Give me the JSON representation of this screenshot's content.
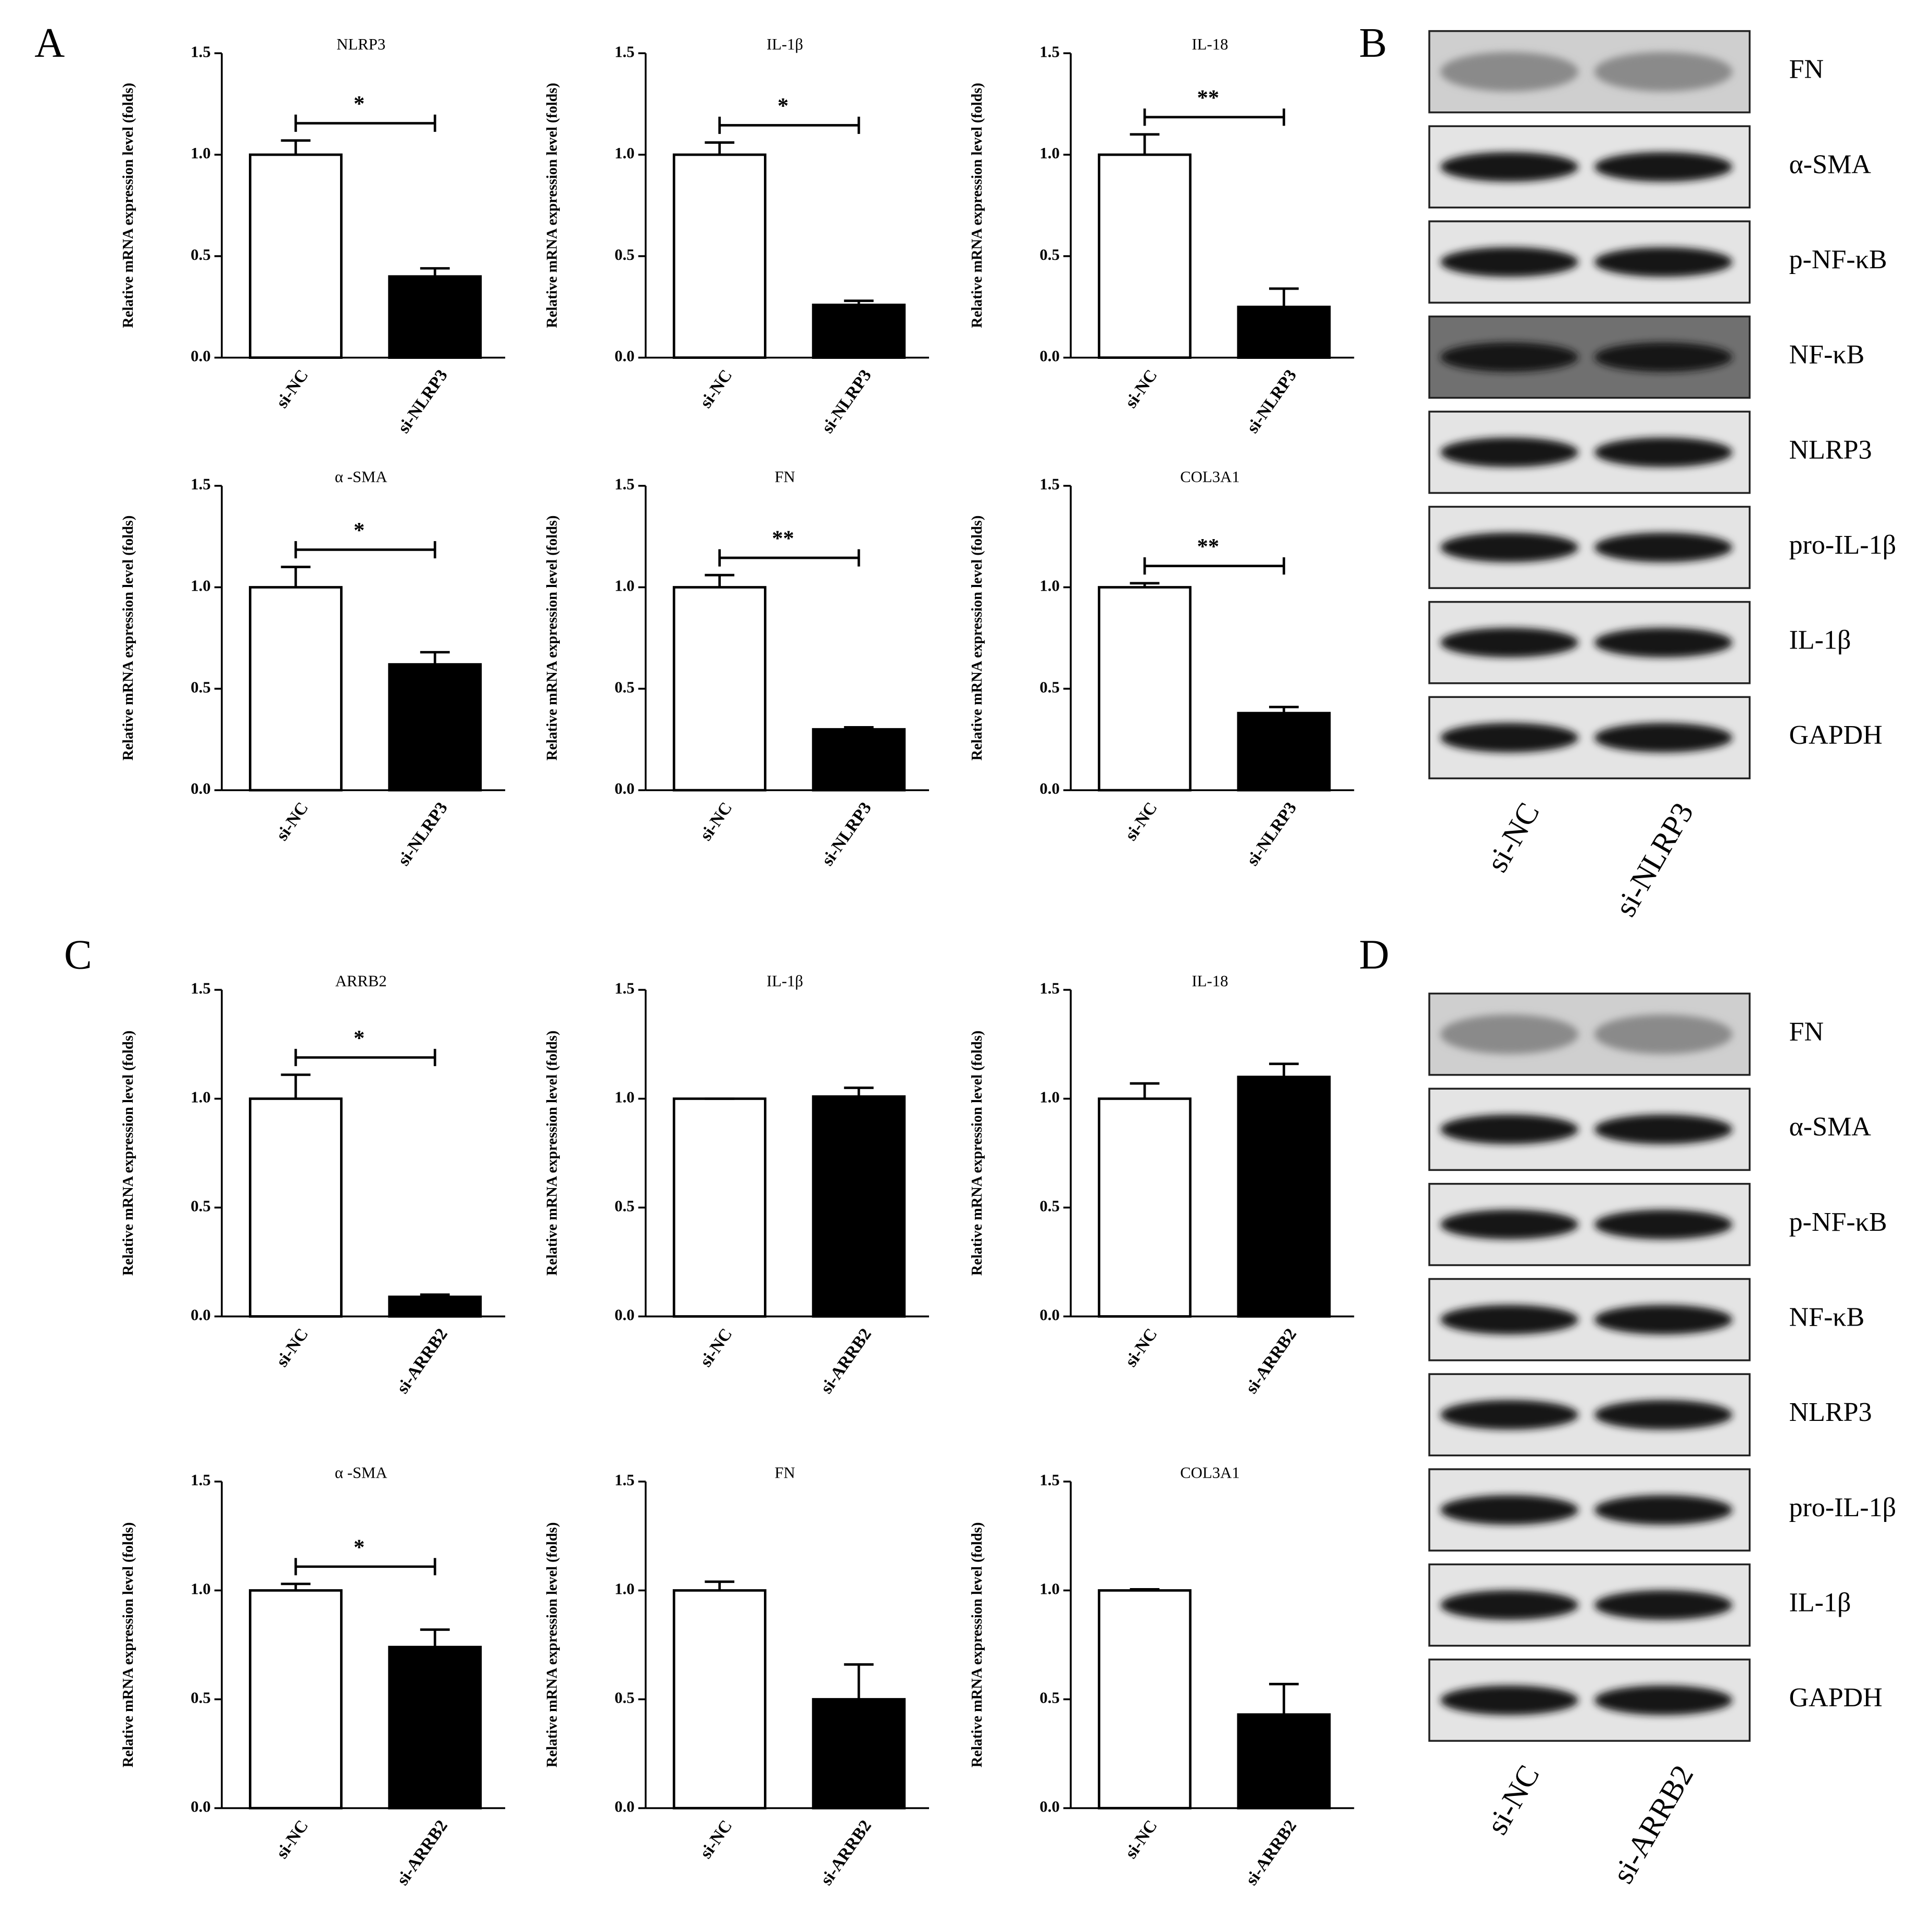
{
  "panel_labels": [
    "A",
    "B",
    "C",
    "D"
  ],
  "chart_data": [
    {
      "type": "bar",
      "title": "NLRP3",
      "ylabel": "Relative mRNA expression level (folds)",
      "categories": [
        "si-NC",
        "si-NLRP3"
      ],
      "values": [
        1.0,
        0.4
      ],
      "errors": [
        0.07,
        0.04
      ],
      "colors": [
        "#ffffff",
        "#000000"
      ],
      "significance": "*",
      "ylim": [
        0,
        1.5
      ],
      "yticks": [
        {
          "value": 0,
          "label": "0.0"
        },
        {
          "value": 0.5,
          "label": "0.5"
        },
        {
          "value": 1,
          "label": "1.0"
        },
        {
          "value": 1.5,
          "label": "1.5"
        }
      ]
    },
    {
      "type": "bar",
      "title": "IL-1β",
      "ylabel": "Relative mRNA expression level (folds)",
      "categories": [
        "si-NC",
        "si-NLRP3"
      ],
      "values": [
        1.0,
        0.26
      ],
      "errors": [
        0.06,
        0.02
      ],
      "colors": [
        "#ffffff",
        "#000000"
      ],
      "significance": "*",
      "ylim": [
        0,
        1.5
      ],
      "yticks": [
        {
          "value": 0,
          "label": "0.0"
        },
        {
          "value": 0.5,
          "label": "0.5"
        },
        {
          "value": 1,
          "label": "1.0"
        },
        {
          "value": 1.5,
          "label": "1.5"
        }
      ]
    },
    {
      "type": "bar",
      "title": "IL-18",
      "ylabel": "Relative mRNA expression level (folds)",
      "categories": [
        "si-NC",
        "si-NLRP3"
      ],
      "values": [
        1.0,
        0.25
      ],
      "errors": [
        0.1,
        0.09
      ],
      "colors": [
        "#ffffff",
        "#000000"
      ],
      "significance": "**",
      "ylim": [
        0,
        1.5
      ],
      "yticks": [
        {
          "value": 0,
          "label": "0.0"
        },
        {
          "value": 0.5,
          "label": "0.5"
        },
        {
          "value": 1,
          "label": "1.0"
        },
        {
          "value": 1.5,
          "label": "1.5"
        }
      ]
    },
    {
      "type": "bar",
      "title": "α -SMA",
      "ylabel": "Relative mRNA expression level (folds)",
      "categories": [
        "si-NC",
        "si-NLRP3"
      ],
      "values": [
        1.0,
        0.62
      ],
      "errors": [
        0.1,
        0.06
      ],
      "colors": [
        "#ffffff",
        "#000000"
      ],
      "significance": "*",
      "ylim": [
        0,
        1.5
      ],
      "yticks": [
        {
          "value": 0,
          "label": "0.0"
        },
        {
          "value": 0.5,
          "label": "0.5"
        },
        {
          "value": 1,
          "label": "1.0"
        },
        {
          "value": 1.5,
          "label": "1.5"
        }
      ]
    },
    {
      "type": "bar",
      "title": "FN",
      "ylabel": "Relative mRNA expression level (folds)",
      "categories": [
        "si-NC",
        "si-NLRP3"
      ],
      "values": [
        1.0,
        0.3
      ],
      "errors": [
        0.06,
        0.01
      ],
      "colors": [
        "#ffffff",
        "#000000"
      ],
      "significance": "**",
      "ylim": [
        0,
        1.5
      ],
      "yticks": [
        {
          "value": 0,
          "label": "0.0"
        },
        {
          "value": 0.5,
          "label": "0.5"
        },
        {
          "value": 1,
          "label": "1.0"
        },
        {
          "value": 1.5,
          "label": "1.5"
        }
      ]
    },
    {
      "type": "bar",
      "title": "COL3A1",
      "ylabel": "Relative mRNA expression level (folds)",
      "categories": [
        "si-NC",
        "si-NLRP3"
      ],
      "values": [
        1.0,
        0.38
      ],
      "errors": [
        0.02,
        0.03
      ],
      "colors": [
        "#ffffff",
        "#000000"
      ],
      "significance": "**",
      "ylim": [
        0,
        1.5
      ],
      "yticks": [
        {
          "value": 0,
          "label": "0.0"
        },
        {
          "value": 0.5,
          "label": "0.5"
        },
        {
          "value": 1,
          "label": "1.0"
        },
        {
          "value": 1.5,
          "label": "1.5"
        }
      ]
    },
    {
      "type": "bar",
      "title": "ARRB2",
      "ylabel": "Relative mRNA expression level (folds)",
      "categories": [
        "si-NC",
        "si-ARRB2"
      ],
      "values": [
        1.0,
        0.09
      ],
      "errors": [
        0.11,
        0.01
      ],
      "colors": [
        "#ffffff",
        "#000000"
      ],
      "significance": "*",
      "ylim": [
        0,
        1.5
      ],
      "yticks": [
        {
          "value": 0,
          "label": "0.0"
        },
        {
          "value": 0.5,
          "label": "0.5"
        },
        {
          "value": 1,
          "label": "1.0"
        },
        {
          "value": 1.5,
          "label": "1.5"
        }
      ]
    },
    {
      "type": "bar",
      "title": "IL-1β",
      "ylabel": "Relative mRNA expression level (folds)",
      "categories": [
        "si-NC",
        "si-ARRB2"
      ],
      "values": [
        1.0,
        1.01
      ],
      "errors": [
        0.0,
        0.04
      ],
      "colors": [
        "#ffffff",
        "#000000"
      ],
      "ylim": [
        0,
        1.5
      ],
      "yticks": [
        {
          "value": 0,
          "label": "0.0"
        },
        {
          "value": 0.5,
          "label": "0.5"
        },
        {
          "value": 1,
          "label": "1.0"
        },
        {
          "value": 1.5,
          "label": "1.5"
        }
      ]
    },
    {
      "type": "bar",
      "title": "IL-18",
      "ylabel": "Relative mRNA expression level (folds)",
      "categories": [
        "si-NC",
        "si-ARRB2"
      ],
      "values": [
        1.0,
        1.1
      ],
      "errors": [
        0.07,
        0.06
      ],
      "colors": [
        "#ffffff",
        "#000000"
      ],
      "ylim": [
        0,
        1.5
      ],
      "yticks": [
        {
          "value": 0,
          "label": "0.0"
        },
        {
          "value": 0.5,
          "label": "0.5"
        },
        {
          "value": 1,
          "label": "1.0"
        },
        {
          "value": 1.5,
          "label": "1.5"
        }
      ]
    },
    {
      "type": "bar",
      "title": "α -SMA",
      "ylabel": "Relative mRNA expression level (folds)",
      "categories": [
        "si-NC",
        "si-ARRB2"
      ],
      "values": [
        1.0,
        0.74
      ],
      "errors": [
        0.03,
        0.08
      ],
      "colors": [
        "#ffffff",
        "#000000"
      ],
      "significance": "*",
      "ylim": [
        0,
        1.5
      ],
      "yticks": [
        {
          "value": 0,
          "label": "0.0"
        },
        {
          "value": 0.5,
          "label": "0.5"
        },
        {
          "value": 1,
          "label": "1.0"
        },
        {
          "value": 1.5,
          "label": "1.5"
        }
      ]
    },
    {
      "type": "bar",
      "title": "FN",
      "ylabel": "Relative mRNA expression level (folds)",
      "categories": [
        "si-NC",
        "si-ARRB2"
      ],
      "values": [
        1.0,
        0.5
      ],
      "errors": [
        0.04,
        0.16
      ],
      "colors": [
        "#ffffff",
        "#000000"
      ],
      "ylim": [
        0,
        1.5
      ],
      "yticks": [
        {
          "value": 0,
          "label": "0.0"
        },
        {
          "value": 0.5,
          "label": "0.5"
        },
        {
          "value": 1,
          "label": "1.0"
        },
        {
          "value": 1.5,
          "label": "1.5"
        }
      ]
    },
    {
      "type": "bar",
      "title": "COL3A1",
      "ylabel": "Relative mRNA expression level (folds)",
      "categories": [
        "si-NC",
        "si-ARRB2"
      ],
      "values": [
        1.0,
        0.43
      ],
      "errors": [
        0.005,
        0.14
      ],
      "colors": [
        "#ffffff",
        "#000000"
      ],
      "ylim": [
        0,
        1.5
      ],
      "yticks": [
        {
          "value": 0,
          "label": "0.0"
        },
        {
          "value": 0.5,
          "label": "0.5"
        },
        {
          "value": 1,
          "label": "1.0"
        },
        {
          "value": 1.5,
          "label": "1.5"
        }
      ]
    }
  ],
  "blots": [
    {
      "bands": [
        "FN",
        "α-SMA",
        "p-NF-κB",
        "NF-κB",
        "NLRP3",
        "pro-IL-1β",
        "IL-1β",
        "GAPDH"
      ],
      "lanes": [
        "si-NC",
        "si-NLRP3"
      ]
    },
    {
      "bands": [
        "FN",
        "α-SMA",
        "p-NF-κB",
        "NF-κB",
        "NLRP3",
        "pro-IL-1β",
        "IL-1β",
        "GAPDH"
      ],
      "lanes": [
        "si-NC",
        "si-ARRB2"
      ]
    }
  ]
}
